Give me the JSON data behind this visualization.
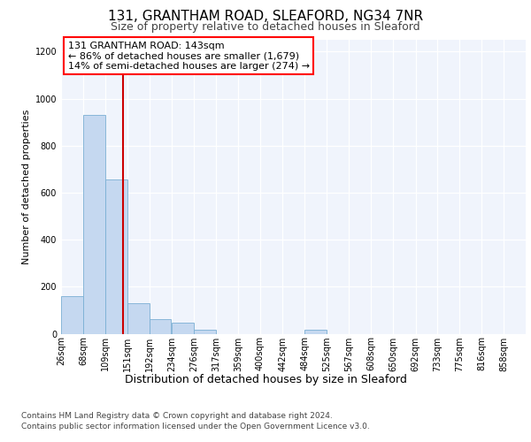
{
  "title_line1": "131, GRANTHAM ROAD, SLEAFORD, NG34 7NR",
  "title_line2": "Size of property relative to detached houses in Sleaford",
  "xlabel": "Distribution of detached houses by size in Sleaford",
  "ylabel": "Number of detached properties",
  "footer_line1": "Contains HM Land Registry data © Crown copyright and database right 2024.",
  "footer_line2": "Contains public sector information licensed under the Open Government Licence v3.0.",
  "annotation_line1": "131 GRANTHAM ROAD: 143sqm",
  "annotation_line2": "← 86% of detached houses are smaller (1,679)",
  "annotation_line3": "14% of semi-detached houses are larger (274) →",
  "bar_color": "#c5d8f0",
  "bar_edge_color": "#7bafd4",
  "background_color": "#ffffff",
  "plot_bg_color": "#f0f4fc",
  "grid_color": "#ffffff",
  "red_line_color": "#cc0000",
  "red_line_x": 143,
  "categories": [
    "26sqm",
    "68sqm",
    "109sqm",
    "151sqm",
    "192sqm",
    "234sqm",
    "276sqm",
    "317sqm",
    "359sqm",
    "400sqm",
    "442sqm",
    "484sqm",
    "525sqm",
    "567sqm",
    "608sqm",
    "650sqm",
    "692sqm",
    "733sqm",
    "775sqm",
    "816sqm",
    "858sqm"
  ],
  "bin_edges": [
    26,
    68,
    109,
    151,
    192,
    234,
    276,
    317,
    359,
    400,
    442,
    484,
    525,
    567,
    608,
    650,
    692,
    733,
    775,
    816,
    858
  ],
  "bin_width": 41,
  "bar_heights": [
    160,
    930,
    655,
    128,
    63,
    48,
    18,
    0,
    0,
    0,
    0,
    18,
    0,
    0,
    0,
    0,
    0,
    0,
    0,
    0,
    0
  ],
  "ylim": [
    0,
    1250
  ],
  "yticks": [
    0,
    200,
    400,
    600,
    800,
    1000,
    1200
  ],
  "title1_fontsize": 11,
  "title2_fontsize": 9,
  "ylabel_fontsize": 8,
  "xlabel_fontsize": 9,
  "tick_fontsize": 7,
  "footer_fontsize": 6.5,
  "annotation_fontsize": 8
}
